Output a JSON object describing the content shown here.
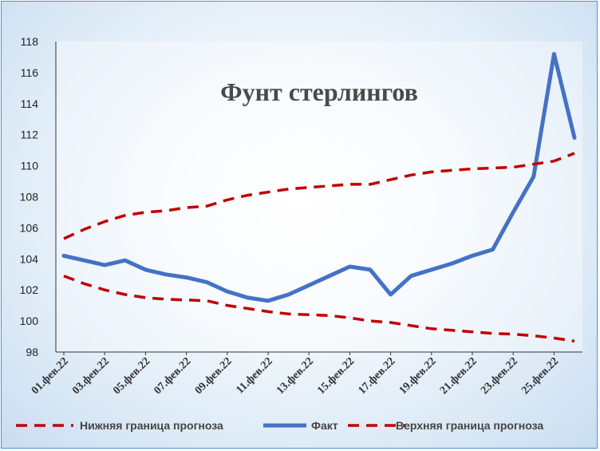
{
  "chart_data": {
    "type": "line",
    "title": "Фунт стерлингов",
    "xlabel": "",
    "ylabel": "",
    "ylim": [
      98,
      118
    ],
    "yticks": [
      98,
      100,
      102,
      104,
      106,
      108,
      110,
      112,
      114,
      116,
      118
    ],
    "x_tick_labels": [
      "01.фев.22",
      "03.фев.22",
      "05.фев.22",
      "07.фев.22",
      "09.фев.22",
      "11.фев.22",
      "13.фев.22",
      "15.фев.22",
      "17.фев.22",
      "19.фев.22",
      "21.фев.22",
      "23.фев.22",
      "25.фев.22"
    ],
    "x": [
      "01.фев.22",
      "02.фев.22",
      "03.фев.22",
      "04.фев.22",
      "05.фев.22",
      "06.фев.22",
      "07.фев.22",
      "08.фев.22",
      "09.фев.22",
      "10.фев.22",
      "11.фев.22",
      "12.фев.22",
      "13.фев.22",
      "14.фев.22",
      "15.фев.22",
      "16.фев.22",
      "17.фев.22",
      "18.фев.22",
      "19.фев.22",
      "20.фев.22",
      "21.фев.22",
      "22.фев.22",
      "23.фев.22",
      "24.фев.22",
      "25.фев.22",
      "26.фев.22"
    ],
    "grid": false,
    "legend_position": "bottom",
    "series": [
      {
        "name": "Нижняя граница прогноза",
        "style": "dashed",
        "color": "#c00000",
        "values": [
          102.9,
          102.4,
          102.0,
          101.7,
          101.5,
          101.4,
          101.35,
          101.3,
          101.0,
          100.8,
          100.6,
          100.45,
          100.4,
          100.35,
          100.2,
          100.0,
          99.9,
          99.7,
          99.5,
          99.4,
          99.3,
          99.2,
          99.15,
          99.05,
          98.9,
          98.7
        ]
      },
      {
        "name": "Факт",
        "style": "solid",
        "color": "#4472c4",
        "values": [
          104.2,
          103.9,
          103.6,
          103.9,
          103.3,
          103.0,
          102.8,
          102.5,
          101.9,
          101.5,
          101.3,
          101.7,
          102.3,
          102.9,
          103.5,
          103.3,
          101.7,
          102.9,
          103.3,
          103.7,
          104.2,
          104.6,
          107.0,
          109.3,
          117.2,
          111.8
        ]
      },
      {
        "name": "Верхняя граница прогноза",
        "style": "dashed",
        "color": "#c00000",
        "values": [
          105.3,
          105.9,
          106.4,
          106.8,
          107.0,
          107.1,
          107.3,
          107.4,
          107.8,
          108.1,
          108.3,
          108.5,
          108.6,
          108.7,
          108.8,
          108.8,
          109.1,
          109.4,
          109.6,
          109.7,
          109.8,
          109.85,
          109.9,
          110.1,
          110.3,
          110.8
        ]
      }
    ]
  }
}
